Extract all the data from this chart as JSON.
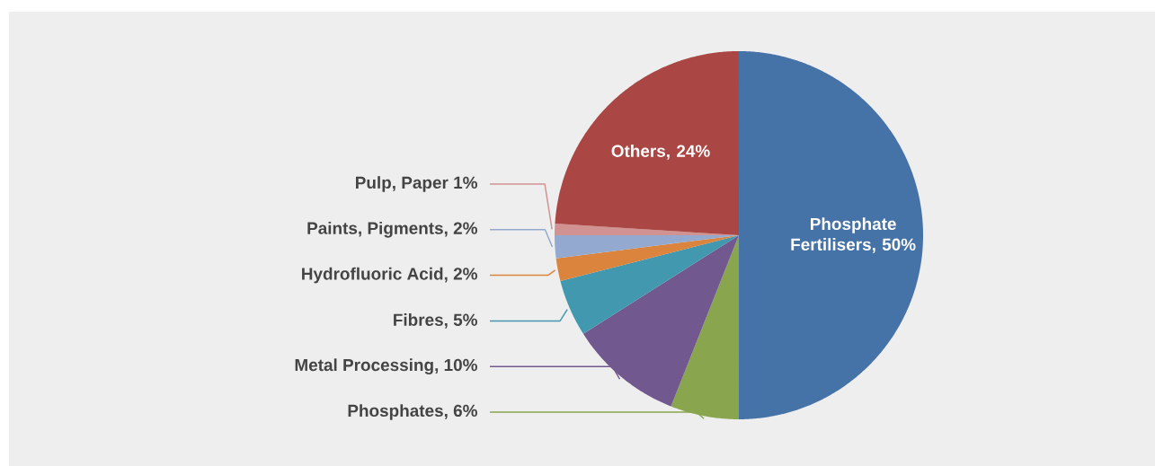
{
  "chart_data": {
    "type": "pie",
    "categories": [
      "Phosphate Fertilisers, 50%",
      "Phosphates, 6%",
      "Metal Processing, 10%",
      "Fibres, 5%",
      "Hydrofluoric Acid, 2%",
      "Paints, Pigments, 2%",
      "Pulp, Paper 1%",
      "Others, 24%"
    ],
    "values": [
      50,
      6,
      10,
      5,
      2,
      2,
      1,
      24
    ],
    "colors": [
      "#4673a7",
      "#89a54e",
      "#71588f",
      "#4198af",
      "#db843d",
      "#93a9cf",
      "#d19392",
      "#aa4643"
    ]
  }
}
